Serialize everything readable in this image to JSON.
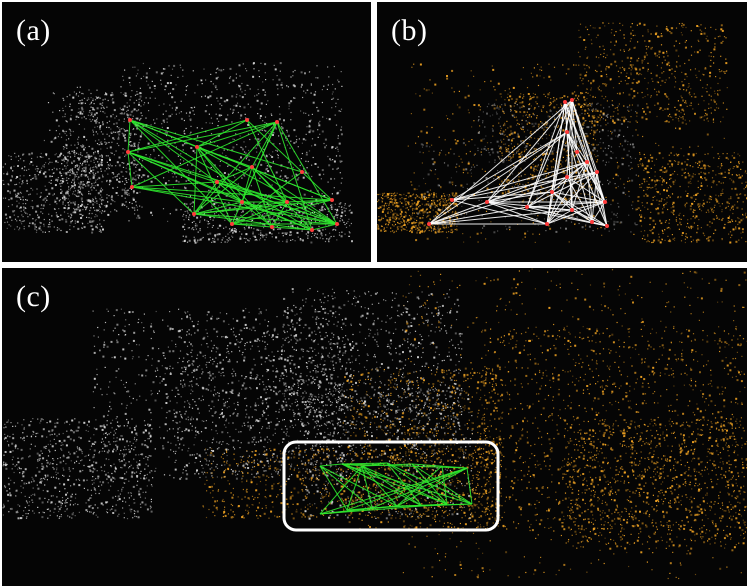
{
  "panels": {
    "a": {
      "label": "(a)",
      "cloud_color": "#d8d8d8",
      "graph_color": "#2ee82e",
      "node_color": "#ff3b3b"
    },
    "b": {
      "label": "(b)",
      "cloud_color": "#f5a623",
      "graph_color": "#ffffff",
      "node_color": "#ff3b3b"
    },
    "c": {
      "label": "(c)",
      "cloud_colors": [
        "#d8d8d8",
        "#f5a623"
      ],
      "graph_color": "#2ee82e",
      "highlight_box_color": "#ffffff"
    }
  }
}
